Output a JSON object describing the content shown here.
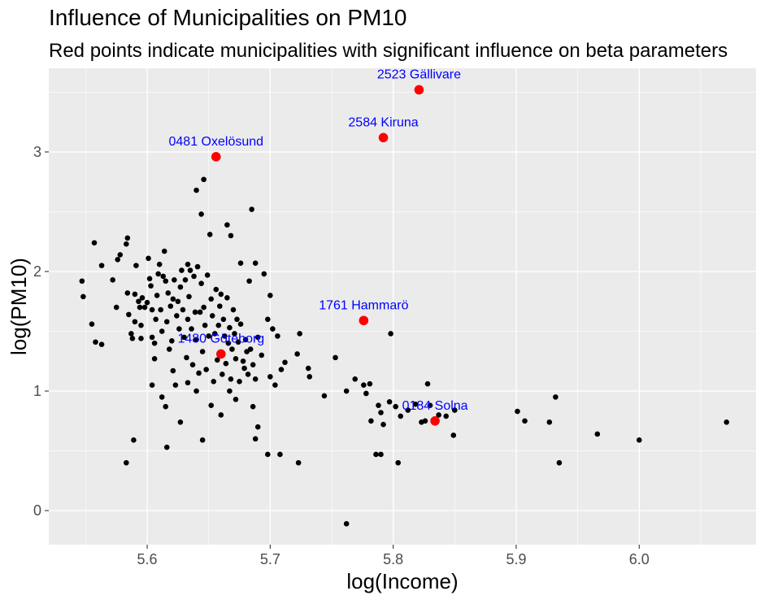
{
  "chart_data": {
    "type": "scatter",
    "title": "Influence of Municipalities on PM10",
    "subtitle": "Red points indicate municipalities with significant influence on beta parameters",
    "xlabel": "log(Income)",
    "ylabel": "log(PM10)",
    "xlim": [
      5.52,
      6.095
    ],
    "ylim": [
      -0.285,
      3.7
    ],
    "x_ticks": [
      5.6,
      5.7,
      5.8,
      5.9,
      6.0
    ],
    "x_tick_labels": [
      "5.6",
      "5.7",
      "5.8",
      "5.9",
      "6.0"
    ],
    "y_ticks": [
      0,
      1,
      2,
      3
    ],
    "y_tick_labels": [
      "0",
      "1",
      "2",
      "3"
    ],
    "grid": true,
    "colors": {
      "panel": "#ebebeb",
      "grid": "#ffffff",
      "point": "#000000",
      "influential": "#ff0000",
      "label": "#0000ff"
    },
    "points": [
      [
        5.547,
        1.92
      ],
      [
        5.548,
        1.79
      ],
      [
        5.555,
        1.56
      ],
      [
        5.557,
        2.24
      ],
      [
        5.558,
        1.41
      ],
      [
        5.563,
        1.39
      ],
      [
        5.563,
        2.05
      ],
      [
        5.572,
        1.93
      ],
      [
        5.576,
        2.1
      ],
      [
        5.578,
        2.14
      ],
      [
        5.575,
        1.7
      ],
      [
        5.583,
        2.23
      ],
      [
        5.584,
        2.28
      ],
      [
        5.584,
        1.82
      ],
      [
        5.585,
        1.64
      ],
      [
        5.587,
        1.48
      ],
      [
        5.588,
        1.44
      ],
      [
        5.59,
        1.58
      ],
      [
        5.59,
        1.81
      ],
      [
        5.591,
        2.05
      ],
      [
        5.593,
        1.75
      ],
      [
        5.594,
        1.7
      ],
      [
        5.595,
        1.55
      ],
      [
        5.595,
        1.44
      ],
      [
        5.596,
        1.78
      ],
      [
        5.598,
        1.7
      ],
      [
        5.6,
        1.74
      ],
      [
        5.601,
        2.11
      ],
      [
        5.602,
        1.94
      ],
      [
        5.603,
        1.88
      ],
      [
        5.604,
        1.68
      ],
      [
        5.604,
        1.45
      ],
      [
        5.606,
        1.27
      ],
      [
        5.606,
        1.4
      ],
      [
        5.607,
        1.6
      ],
      [
        5.608,
        1.8
      ],
      [
        5.609,
        1.98
      ],
      [
        5.61,
        2.06
      ],
      [
        5.611,
        1.68
      ],
      [
        5.612,
        1.5
      ],
      [
        5.613,
        1.96
      ],
      [
        5.614,
        2.17
      ],
      [
        5.615,
        1.92
      ],
      [
        5.616,
        1.58
      ],
      [
        5.617,
        1.82
      ],
      [
        5.618,
        1.35
      ],
      [
        5.619,
        1.71
      ],
      [
        5.62,
        1.42
      ],
      [
        5.621,
        1.77
      ],
      [
        5.622,
        1.93
      ],
      [
        5.623,
        1.05
      ],
      [
        5.624,
        1.63
      ],
      [
        5.625,
        1.75
      ],
      [
        5.626,
        1.52
      ],
      [
        5.627,
        1.87
      ],
      [
        5.628,
        2.01
      ],
      [
        5.629,
        1.68
      ],
      [
        5.63,
        1.45
      ],
      [
        5.631,
        1.93
      ],
      [
        5.632,
        1.28
      ],
      [
        5.633,
        2.06
      ],
      [
        5.633,
        1.6
      ],
      [
        5.634,
        1.79
      ],
      [
        5.635,
        2.01
      ],
      [
        5.636,
        1.52
      ],
      [
        5.637,
        1.22
      ],
      [
        5.638,
        1.96
      ],
      [
        5.639,
        1.66
      ],
      [
        5.64,
        1.43
      ],
      [
        5.641,
        2.04
      ],
      [
        5.642,
        1.15
      ],
      [
        5.643,
        1.66
      ],
      [
        5.644,
        1.9
      ],
      [
        5.645,
        1.33
      ],
      [
        5.646,
        1.7
      ],
      [
        5.647,
        1.55
      ],
      [
        5.648,
        1.18
      ],
      [
        5.649,
        1.97
      ],
      [
        5.65,
        1.46
      ],
      [
        5.651,
        2.31
      ],
      [
        5.652,
        1.77
      ],
      [
        5.653,
        1.63
      ],
      [
        5.654,
        1.08
      ],
      [
        5.655,
        1.48
      ],
      [
        5.656,
        1.85
      ],
      [
        5.657,
        1.26
      ],
      [
        5.658,
        1.55
      ],
      [
        5.659,
        1.71
      ],
      [
        5.66,
        1.81
      ],
      [
        5.661,
        1.14
      ],
      [
        5.662,
        1.6
      ],
      [
        5.663,
        1.46
      ],
      [
        5.664,
        1.23
      ],
      [
        5.665,
        1.78
      ],
      [
        5.666,
        1.4
      ],
      [
        5.667,
        1.53
      ],
      [
        5.668,
        1.1
      ],
      [
        5.669,
        1.35
      ],
      [
        5.67,
        1.68
      ],
      [
        5.671,
        1.48
      ],
      [
        5.672,
        1.27
      ],
      [
        5.673,
        1.6
      ],
      [
        5.674,
        1.41
      ],
      [
        5.676,
        1.56
      ],
      [
        5.678,
        1.25
      ],
      [
        5.68,
        1.43
      ],
      [
        5.682,
        1.14
      ],
      [
        5.684,
        1.35
      ],
      [
        5.686,
        1.22
      ],
      [
        5.688,
        1.1
      ],
      [
        5.69,
        1.45
      ],
      [
        5.693,
        1.3
      ],
      [
        5.64,
        2.68
      ],
      [
        5.644,
        2.48
      ],
      [
        5.646,
        2.77
      ],
      [
        5.665,
        2.39
      ],
      [
        5.668,
        2.3
      ],
      [
        5.685,
        2.52
      ],
      [
        5.683,
        1.92
      ],
      [
        5.688,
        2.07
      ],
      [
        5.695,
        1.98
      ],
      [
        5.676,
        2.07
      ],
      [
        5.698,
        1.6
      ],
      [
        5.7,
        1.8
      ],
      [
        5.702,
        1.52
      ],
      [
        5.706,
        1.46
      ],
      [
        5.709,
        1.18
      ],
      [
        5.712,
        1.24
      ],
      [
        5.7,
        1.12
      ],
      [
        5.686,
        0.87
      ],
      [
        5.69,
        0.7
      ],
      [
        5.688,
        0.6
      ],
      [
        5.698,
        0.47
      ],
      [
        5.708,
        0.47
      ],
      [
        5.723,
        0.4
      ],
      [
        5.704,
        1.05
      ],
      [
        5.615,
        0.87
      ],
      [
        5.616,
        0.53
      ],
      [
        5.627,
        0.74
      ],
      [
        5.645,
        0.59
      ],
      [
        5.652,
        0.88
      ],
      [
        5.66,
        0.8
      ],
      [
        5.667,
        1.0
      ],
      [
        5.672,
        0.93
      ],
      [
        5.675,
        1.08
      ],
      [
        5.679,
        1.19
      ],
      [
        5.681,
        1.33
      ],
      [
        5.64,
        1.0
      ],
      [
        5.633,
        1.07
      ],
      [
        5.621,
        1.17
      ],
      [
        5.604,
        1.05
      ],
      [
        5.612,
        0.95
      ],
      [
        5.583,
        0.4
      ],
      [
        5.589,
        0.59
      ],
      [
        5.724,
        1.48
      ],
      [
        5.722,
        1.31
      ],
      [
        5.731,
        1.19
      ],
      [
        5.732,
        1.12
      ],
      [
        5.744,
        0.96
      ],
      [
        5.753,
        1.28
      ],
      [
        5.762,
        1.0
      ],
      [
        5.769,
        1.1
      ],
      [
        5.776,
        1.05
      ],
      [
        5.778,
        0.98
      ],
      [
        5.781,
        1.06
      ],
      [
        5.782,
        0.75
      ],
      [
        5.788,
        0.88
      ],
      [
        5.79,
        0.82
      ],
      [
        5.792,
        0.72
      ],
      [
        5.797,
        0.91
      ],
      [
        5.798,
        1.48
      ],
      [
        5.802,
        0.87
      ],
      [
        5.804,
        0.4
      ],
      [
        5.786,
        0.47
      ],
      [
        5.79,
        0.47
      ],
      [
        5.806,
        0.79
      ],
      [
        5.812,
        0.84
      ],
      [
        5.818,
        0.89
      ],
      [
        5.823,
        0.74
      ],
      [
        5.828,
        1.06
      ],
      [
        5.83,
        0.88
      ],
      [
        5.837,
        0.8
      ],
      [
        5.843,
        0.79
      ],
      [
        5.849,
        0.63
      ],
      [
        5.85,
        0.84
      ],
      [
        5.826,
        0.75
      ],
      [
        5.762,
        -0.11
      ],
      [
        5.901,
        0.83
      ],
      [
        5.907,
        0.75
      ],
      [
        5.927,
        0.74
      ],
      [
        5.932,
        0.95
      ],
      [
        5.935,
        0.4
      ],
      [
        5.966,
        0.64
      ],
      [
        6.0,
        0.59
      ],
      [
        6.071,
        0.74
      ]
    ],
    "influential": [
      {
        "x": 5.656,
        "y": 2.96,
        "label": "0481 Oxelösund"
      },
      {
        "x": 5.821,
        "y": 3.52,
        "label": "2523 Gällivare"
      },
      {
        "x": 5.792,
        "y": 3.12,
        "label": "2584 Kiruna"
      },
      {
        "x": 5.776,
        "y": 1.59,
        "label": "1761 Hammarö"
      },
      {
        "x": 5.66,
        "y": 1.31,
        "label": "1480 Göteborg"
      },
      {
        "x": 5.834,
        "y": 0.75,
        "label": "0184 Solna"
      }
    ]
  }
}
